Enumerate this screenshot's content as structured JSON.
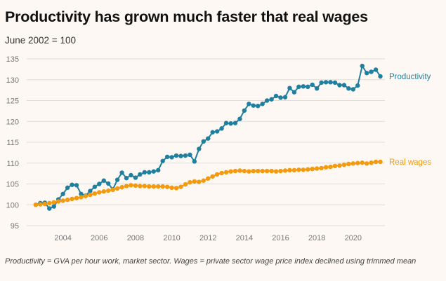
{
  "title": "Productivity has grown much faster that real wages",
  "subtitle": "June 2002 = 100",
  "note": "Productivity = GVA per hour work, market sector. Wages = private sector wage price index declined using trimmed mean",
  "colors": {
    "productivity": "#1f7fa0",
    "wages": "#f39a0f",
    "grid": "#dddddd",
    "background": "#fdf8f3"
  },
  "chart_data": {
    "type": "line",
    "ylim": [
      95,
      135
    ],
    "yticks": [
      95,
      100,
      105,
      110,
      115,
      120,
      125,
      130,
      135
    ],
    "xlim": [
      2002,
      2021.75
    ],
    "xticks": [
      2004,
      2006,
      2008,
      2010,
      2012,
      2014,
      2016,
      2018,
      2020
    ],
    "grid": true,
    "series": [
      {
        "name": "Productivity",
        "start_year": 2002.5,
        "step": 0.25,
        "values": [
          100,
          100.4,
          100.5,
          99.1,
          99.6,
          101.3,
          102.6,
          104.1,
          104.8,
          104.7,
          102.6,
          102.2,
          103.3,
          104.3,
          105,
          105.8,
          105.1,
          103.7,
          106,
          107.7,
          106.4,
          107.1,
          106.5,
          107.3,
          107.8,
          107.8,
          108,
          108.3,
          110.5,
          111.5,
          111.4,
          111.8,
          111.7,
          111.8,
          112,
          110.4,
          113.4,
          115.2,
          115.9,
          117.4,
          117.6,
          118.3,
          119.6,
          119.5,
          119.6,
          120.6,
          122.6,
          124.2,
          123.8,
          123.7,
          124.2,
          125,
          125.3,
          126.1,
          125.7,
          125.8,
          128,
          127,
          128.3,
          128.4,
          128.3,
          128.8,
          127.9,
          129.3,
          129.4,
          129.4,
          129.3,
          128.7,
          128.7,
          127.9,
          127.7,
          128.6,
          133.3,
          131.6,
          131.9,
          132.4,
          130.8
        ]
      },
      {
        "name": "Real wages",
        "start_year": 2002.5,
        "step": 0.25,
        "values": [
          100,
          100.1,
          100.2,
          100.4,
          100.6,
          100.8,
          101,
          101.2,
          101.4,
          101.6,
          101.8,
          102.1,
          102.4,
          102.7,
          103,
          103.2,
          103.4,
          103.6,
          103.9,
          104.2,
          104.5,
          104.7,
          104.6,
          104.5,
          104.5,
          104.4,
          104.4,
          104.4,
          104.4,
          104.3,
          104.1,
          104,
          104.3,
          104.9,
          105.4,
          105.6,
          105.5,
          105.8,
          106.3,
          106.8,
          107.3,
          107.6,
          107.8,
          108,
          108.1,
          108.2,
          108.1,
          108,
          108.1,
          108.1,
          108.1,
          108.1,
          108.1,
          108,
          108.1,
          108.2,
          108.3,
          108.3,
          108.4,
          108.4,
          108.5,
          108.6,
          108.7,
          108.8,
          109,
          109.1,
          109.3,
          109.4,
          109.6,
          109.8,
          109.9,
          110,
          110.1,
          109.9,
          110.1,
          110.3,
          110.3
        ]
      }
    ]
  }
}
